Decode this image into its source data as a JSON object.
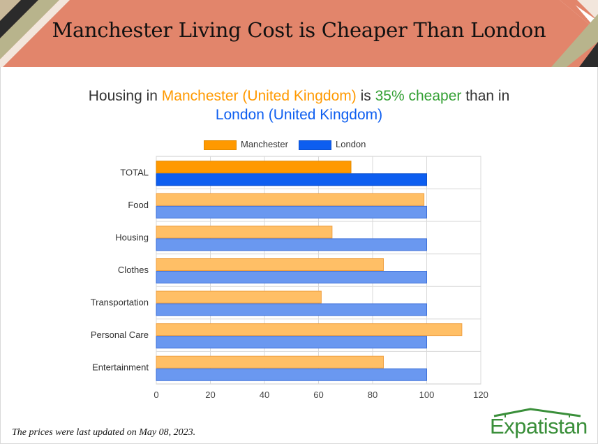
{
  "page_title": "Manchester Living Cost is Cheaper Than London",
  "subtitle": {
    "part1": "Housing in ",
    "city1": "Manchester (United Kingdom)",
    "part2": " is ",
    "diff": "35% cheaper",
    "part3": " than in ",
    "city2": "London (United Kingdom)"
  },
  "colors": {
    "banner": "#e2856b",
    "manchester_primary": "#ff9900",
    "london_primary": "#0d5ef0",
    "manchester_light": "#ffbf66",
    "london_light": "#6a98f0",
    "city1_text": "#ff9900",
    "diff_text": "#33a033",
    "city2_text": "#0d5ef0",
    "brand": "#3a8f3a"
  },
  "footer_note": "The prices were last updated on May 08, 2023.",
  "brand_name": "Expatistan",
  "chart_data": {
    "type": "bar",
    "orientation": "horizontal",
    "categories": [
      "TOTAL",
      "Food",
      "Housing",
      "Clothes",
      "Transportation",
      "Personal Care",
      "Entertainment"
    ],
    "series": [
      {
        "name": "Manchester",
        "values": [
          72,
          99,
          65,
          84,
          61,
          113,
          84
        ]
      },
      {
        "name": "London",
        "values": [
          100,
          100,
          100,
          100,
          100,
          100,
          100
        ]
      }
    ],
    "xlim": [
      0,
      120
    ],
    "xticks": [
      0,
      20,
      40,
      60,
      80,
      100,
      120
    ],
    "grid": true,
    "legend_position": "top"
  }
}
